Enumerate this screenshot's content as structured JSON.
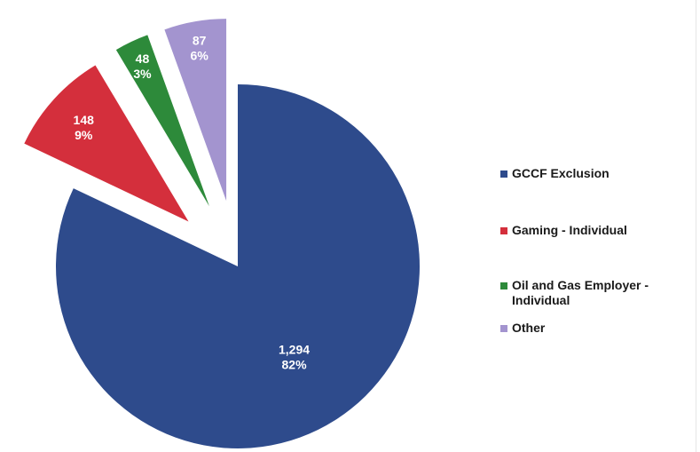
{
  "chart_data": {
    "type": "pie",
    "exploded": true,
    "legend_position": "right",
    "slices": [
      {
        "label": "GCCF Exclusion",
        "value": 1294,
        "value_text": "1,294",
        "percent_text": "82%",
        "color": "#2e4b8c"
      },
      {
        "label": "Gaming - Individual",
        "value": 148,
        "value_text": "148",
        "percent_text": "9%",
        "color": "#d42f3c"
      },
      {
        "label": "Oil and Gas Employer - Individual",
        "value": 48,
        "value_text": "48",
        "percent_text": "3%",
        "color": "#2d8a3a"
      },
      {
        "label": "Other",
        "value": 87,
        "value_text": "87",
        "percent_text": "6%",
        "color": "#a394cf"
      }
    ]
  }
}
